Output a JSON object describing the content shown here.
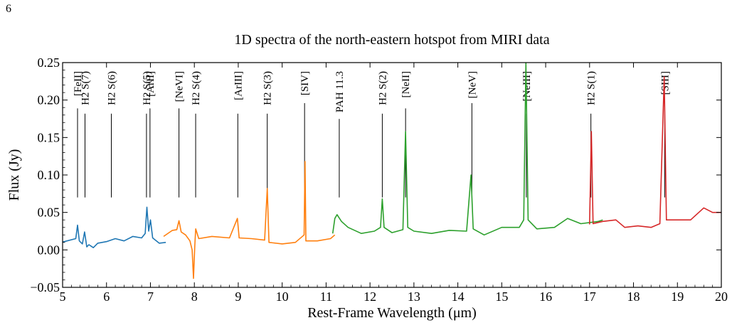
{
  "page": {
    "page_number": "6"
  },
  "chart_data": {
    "type": "line",
    "title": "1D spectra of the north-eastern hotspot from MIRI data",
    "xlabel": "Rest-Frame Wavelength (μm)",
    "ylabel": "Flux (Jy)",
    "xlim": [
      5,
      20
    ],
    "ylim": [
      -0.05,
      0.25
    ],
    "x_ticks": [
      5,
      6,
      7,
      8,
      9,
      10,
      11,
      12,
      13,
      14,
      15,
      16,
      17,
      18,
      19,
      20
    ],
    "y_ticks": [
      -0.05,
      0.0,
      0.05,
      0.1,
      0.15,
      0.2,
      0.25
    ],
    "y_tick_labels": [
      "−0.05",
      "0.00",
      "0.05",
      "0.10",
      "0.15",
      "0.20",
      "0.25"
    ],
    "grid": false,
    "legend": "none",
    "series": [
      {
        "color": "#1f77b4",
        "points": [
          [
            4.9,
            0.009
          ],
          [
            5.1,
            0.012
          ],
          [
            5.3,
            0.015
          ],
          [
            5.34,
            0.033
          ],
          [
            5.38,
            0.012
          ],
          [
            5.45,
            0.008
          ],
          [
            5.5,
            0.024
          ],
          [
            5.55,
            0.004
          ],
          [
            5.6,
            0.007
          ],
          [
            5.7,
            0.003
          ],
          [
            5.8,
            0.009
          ],
          [
            6.0,
            0.011
          ],
          [
            6.2,
            0.015
          ],
          [
            6.4,
            0.012
          ],
          [
            6.6,
            0.018
          ],
          [
            6.8,
            0.016
          ],
          [
            6.88,
            0.022
          ],
          [
            6.92,
            0.057
          ],
          [
            6.96,
            0.025
          ],
          [
            7.0,
            0.04
          ],
          [
            7.05,
            0.016
          ],
          [
            7.2,
            0.009
          ],
          [
            7.35,
            0.01
          ]
        ]
      },
      {
        "color": "#ff7f0e",
        "points": [
          [
            7.3,
            0.018
          ],
          [
            7.5,
            0.026
          ],
          [
            7.6,
            0.027
          ],
          [
            7.65,
            0.039
          ],
          [
            7.7,
            0.024
          ],
          [
            7.8,
            0.02
          ],
          [
            7.9,
            0.012
          ],
          [
            7.95,
            0.0
          ],
          [
            7.98,
            -0.038
          ],
          [
            8.01,
            0.005
          ],
          [
            8.03,
            0.028
          ],
          [
            8.1,
            0.015
          ],
          [
            8.4,
            0.018
          ],
          [
            8.8,
            0.016
          ],
          [
            8.98,
            0.042
          ],
          [
            9.02,
            0.016
          ],
          [
            9.3,
            0.015
          ],
          [
            9.6,
            0.013
          ],
          [
            9.66,
            0.082
          ],
          [
            9.7,
            0.01
          ],
          [
            10.0,
            0.008
          ],
          [
            10.3,
            0.01
          ],
          [
            10.5,
            0.02
          ],
          [
            10.52,
            0.118
          ],
          [
            10.54,
            0.012
          ],
          [
            10.8,
            0.012
          ],
          [
            11.1,
            0.015
          ],
          [
            11.2,
            0.02
          ]
        ]
      },
      {
        "color": "#2ca02c",
        "points": [
          [
            11.15,
            0.022
          ],
          [
            11.2,
            0.042
          ],
          [
            11.25,
            0.047
          ],
          [
            11.35,
            0.038
          ],
          [
            11.5,
            0.03
          ],
          [
            11.8,
            0.022
          ],
          [
            12.1,
            0.025
          ],
          [
            12.24,
            0.03
          ],
          [
            12.28,
            0.068
          ],
          [
            12.32,
            0.03
          ],
          [
            12.5,
            0.023
          ],
          [
            12.75,
            0.027
          ],
          [
            12.81,
            0.158
          ],
          [
            12.86,
            0.03
          ],
          [
            13.0,
            0.025
          ],
          [
            13.4,
            0.022
          ],
          [
            13.8,
            0.026
          ],
          [
            14.2,
            0.025
          ],
          [
            14.3,
            0.1
          ],
          [
            14.35,
            0.028
          ],
          [
            14.6,
            0.02
          ],
          [
            15.0,
            0.03
          ],
          [
            15.4,
            0.03
          ],
          [
            15.5,
            0.04
          ],
          [
            15.55,
            0.25
          ],
          [
            15.6,
            0.04
          ],
          [
            15.8,
            0.028
          ],
          [
            16.2,
            0.03
          ],
          [
            16.5,
            0.042
          ],
          [
            16.8,
            0.035
          ],
          [
            17.2,
            0.038
          ],
          [
            17.3,
            0.04
          ]
        ]
      },
      {
        "color": "#d62728",
        "points": [
          [
            17.0,
            0.034
          ],
          [
            17.04,
            0.158
          ],
          [
            17.08,
            0.035
          ],
          [
            17.3,
            0.038
          ],
          [
            17.6,
            0.04
          ],
          [
            17.8,
            0.03
          ],
          [
            18.1,
            0.032
          ],
          [
            18.4,
            0.03
          ],
          [
            18.6,
            0.035
          ],
          [
            18.7,
            0.231
          ],
          [
            18.75,
            0.04
          ],
          [
            19.0,
            0.04
          ],
          [
            19.3,
            0.04
          ],
          [
            19.6,
            0.056
          ],
          [
            19.8,
            0.05
          ],
          [
            20.0,
            0.05
          ]
        ]
      }
    ],
    "line_markers": [
      {
        "label": "[FeII]",
        "x": 5.34
      },
      {
        "label": "H2 S(7)",
        "x": 5.51
      },
      {
        "label": "H2 S(6)",
        "x": 6.11
      },
      {
        "label": "[ArII]",
        "x": 6.99
      },
      {
        "label": "H2 S(5)",
        "x": 6.91
      },
      {
        "label": "[NeVI]",
        "x": 7.65
      },
      {
        "label": "H2 S(4)",
        "x": 8.03
      },
      {
        "label": "[ArIII]",
        "x": 8.99
      },
      {
        "label": "H2 S(3)",
        "x": 9.66
      },
      {
        "label": "[SIV]",
        "x": 10.51
      },
      {
        "label": "PAH 11.3",
        "x": 11.3
      },
      {
        "label": "H2 S(2)",
        "x": 12.28
      },
      {
        "label": "[NeII]",
        "x": 12.81
      },
      {
        "label": "[NeV]",
        "x": 14.32
      },
      {
        "label": "[NeIII]",
        "x": 15.56
      },
      {
        "label": "H2 S(1)",
        "x": 17.03
      },
      {
        "label": "[SIII]",
        "x": 18.71
      }
    ]
  }
}
